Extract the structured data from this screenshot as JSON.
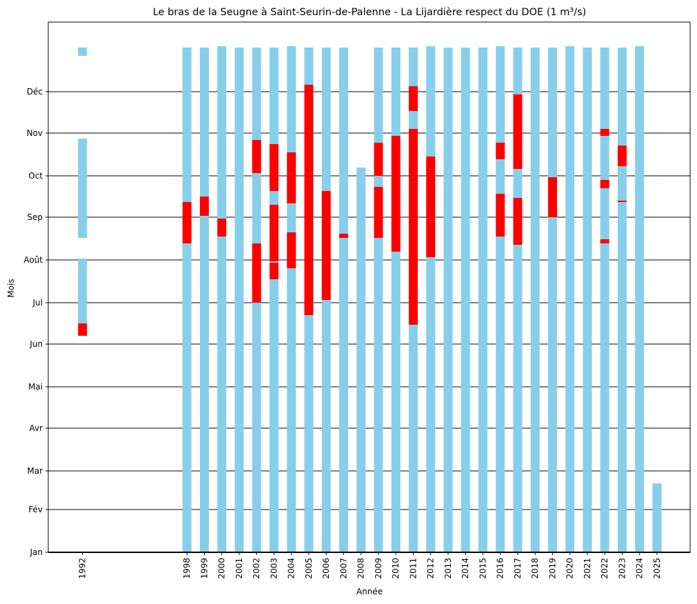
{
  "chart_data": {
    "type": "bar",
    "title": "Le bras de la Seugne à Saint-Seurin-de-Palenne - La Lijardière respect du DOE (1 m³/s)",
    "xlabel": "Année",
    "ylabel": "Mois",
    "ylim": [
      0,
      366
    ],
    "y_tick_labels": [
      {
        "label": "Jan",
        "day": 0
      },
      {
        "label": "Fév",
        "day": 31
      },
      {
        "label": "Mar",
        "day": 59
      },
      {
        "label": "Avr",
        "day": 90
      },
      {
        "label": "Mai",
        "day": 120
      },
      {
        "label": "Jun",
        "day": 151
      },
      {
        "label": "Jul",
        "day": 181
      },
      {
        "label": "Août",
        "day": 212
      },
      {
        "label": "Sep",
        "day": 243
      },
      {
        "label": "Oct",
        "day": 273
      },
      {
        "label": "Nov",
        "day": 304
      },
      {
        "label": "Déc",
        "day": 334
      }
    ],
    "grid": "horizontal lines at month starts",
    "legend": "none",
    "colors": {
      "respect": "#87CEEB",
      "non_respect": "#FF0000"
    },
    "series_semantics": "Each bar spans day-of-year ranges; blue = DOE respected, red = DOE not respected",
    "years": [
      {
        "year": "1992",
        "segments": [
          {
            "start": 157,
            "end": 166,
            "status": "non_respect"
          },
          {
            "start": 166,
            "end": 213,
            "status": "respect"
          },
          {
            "start": 228,
            "end": 300,
            "status": "respect"
          },
          {
            "start": 360,
            "end": 366,
            "status": "respect"
          }
        ]
      },
      {
        "year": "1998",
        "segments": [
          {
            "start": 0,
            "end": 224,
            "status": "respect"
          },
          {
            "start": 224,
            "end": 254,
            "status": "non_respect"
          },
          {
            "start": 254,
            "end": 366,
            "status": "respect"
          }
        ]
      },
      {
        "year": "1999",
        "segments": [
          {
            "start": 0,
            "end": 244,
            "status": "respect"
          },
          {
            "start": 244,
            "end": 258,
            "status": "non_respect"
          },
          {
            "start": 258,
            "end": 366,
            "status": "respect"
          }
        ]
      },
      {
        "year": "2000",
        "segments": [
          {
            "start": 0,
            "end": 229,
            "status": "respect"
          },
          {
            "start": 229,
            "end": 242,
            "status": "non_respect"
          },
          {
            "start": 242,
            "end": 367,
            "status": "respect"
          }
        ]
      },
      {
        "year": "2001",
        "segments": [
          {
            "start": 0,
            "end": 366,
            "status": "respect"
          }
        ]
      },
      {
        "year": "2002",
        "segments": [
          {
            "start": 0,
            "end": 181,
            "status": "respect"
          },
          {
            "start": 181,
            "end": 224,
            "status": "non_respect"
          },
          {
            "start": 224,
            "end": 275,
            "status": "respect"
          },
          {
            "start": 275,
            "end": 277,
            "status": "non_respect"
          },
          {
            "start": 277,
            "end": 299,
            "status": "non_respect"
          },
          {
            "start": 299,
            "end": 366,
            "status": "respect"
          }
        ]
      },
      {
        "year": "2003",
        "segments": [
          {
            "start": 0,
            "end": 198,
            "status": "respect"
          },
          {
            "start": 198,
            "end": 210,
            "status": "non_respect"
          },
          {
            "start": 210,
            "end": 211,
            "status": "respect"
          },
          {
            "start": 211,
            "end": 252,
            "status": "non_respect"
          },
          {
            "start": 252,
            "end": 262,
            "status": "respect"
          },
          {
            "start": 262,
            "end": 296,
            "status": "non_respect"
          },
          {
            "start": 296,
            "end": 366,
            "status": "respect"
          }
        ]
      },
      {
        "year": "2004",
        "segments": [
          {
            "start": 0,
            "end": 206,
            "status": "respect"
          },
          {
            "start": 206,
            "end": 232,
            "status": "non_respect"
          },
          {
            "start": 232,
            "end": 253,
            "status": "respect"
          },
          {
            "start": 253,
            "end": 290,
            "status": "non_respect"
          },
          {
            "start": 290,
            "end": 367,
            "status": "respect"
          }
        ]
      },
      {
        "year": "2005",
        "segments": [
          {
            "start": 0,
            "end": 172,
            "status": "respect"
          },
          {
            "start": 172,
            "end": 339,
            "status": "non_respect"
          },
          {
            "start": 339,
            "end": 366,
            "status": "respect"
          }
        ]
      },
      {
        "year": "2006",
        "segments": [
          {
            "start": 0,
            "end": 183,
            "status": "respect"
          },
          {
            "start": 183,
            "end": 262,
            "status": "non_respect"
          },
          {
            "start": 262,
            "end": 366,
            "status": "respect"
          }
        ]
      },
      {
        "year": "2007",
        "segments": [
          {
            "start": 0,
            "end": 228,
            "status": "respect"
          },
          {
            "start": 228,
            "end": 231,
            "status": "non_respect"
          },
          {
            "start": 231,
            "end": 366,
            "status": "respect"
          }
        ]
      },
      {
        "year": "2008",
        "segments": [
          {
            "start": 0,
            "end": 279,
            "status": "respect"
          }
        ]
      },
      {
        "year": "2009",
        "segments": [
          {
            "start": 0,
            "end": 228,
            "status": "respect"
          },
          {
            "start": 228,
            "end": 265,
            "status": "non_respect"
          },
          {
            "start": 265,
            "end": 273,
            "status": "respect"
          },
          {
            "start": 273,
            "end": 297,
            "status": "non_respect"
          },
          {
            "start": 297,
            "end": 366,
            "status": "respect"
          }
        ]
      },
      {
        "year": "2010",
        "segments": [
          {
            "start": 0,
            "end": 218,
            "status": "respect"
          },
          {
            "start": 218,
            "end": 302,
            "status": "non_respect"
          },
          {
            "start": 302,
            "end": 366,
            "status": "respect"
          }
        ]
      },
      {
        "year": "2011",
        "segments": [
          {
            "start": 0,
            "end": 165,
            "status": "respect"
          },
          {
            "start": 165,
            "end": 307,
            "status": "non_respect"
          },
          {
            "start": 307,
            "end": 320,
            "status": "respect"
          },
          {
            "start": 320,
            "end": 338,
            "status": "non_respect"
          },
          {
            "start": 338,
            "end": 366,
            "status": "respect"
          }
        ]
      },
      {
        "year": "2012",
        "segments": [
          {
            "start": 0,
            "end": 214,
            "status": "respect"
          },
          {
            "start": 214,
            "end": 287,
            "status": "non_respect"
          },
          {
            "start": 287,
            "end": 367,
            "status": "respect"
          }
        ]
      },
      {
        "year": "2013",
        "segments": [
          {
            "start": 0,
            "end": 366,
            "status": "respect"
          }
        ]
      },
      {
        "year": "2014",
        "segments": [
          {
            "start": 0,
            "end": 366,
            "status": "respect"
          }
        ]
      },
      {
        "year": "2015",
        "segments": [
          {
            "start": 0,
            "end": 366,
            "status": "respect"
          }
        ]
      },
      {
        "year": "2016",
        "segments": [
          {
            "start": 0,
            "end": 229,
            "status": "respect"
          },
          {
            "start": 229,
            "end": 260,
            "status": "non_respect"
          },
          {
            "start": 260,
            "end": 285,
            "status": "respect"
          },
          {
            "start": 285,
            "end": 297,
            "status": "non_respect"
          },
          {
            "start": 297,
            "end": 367,
            "status": "respect"
          }
        ]
      },
      {
        "year": "2017",
        "segments": [
          {
            "start": 0,
            "end": 223,
            "status": "respect"
          },
          {
            "start": 223,
            "end": 257,
            "status": "non_respect"
          },
          {
            "start": 257,
            "end": 278,
            "status": "respect"
          },
          {
            "start": 278,
            "end": 332,
            "status": "non_respect"
          },
          {
            "start": 332,
            "end": 366,
            "status": "respect"
          }
        ]
      },
      {
        "year": "2018",
        "segments": [
          {
            "start": 0,
            "end": 366,
            "status": "respect"
          }
        ]
      },
      {
        "year": "2019",
        "segments": [
          {
            "start": 0,
            "end": 243,
            "status": "respect"
          },
          {
            "start": 243,
            "end": 272,
            "status": "non_respect"
          },
          {
            "start": 272,
            "end": 366,
            "status": "respect"
          }
        ]
      },
      {
        "year": "2020",
        "segments": [
          {
            "start": 0,
            "end": 367,
            "status": "respect"
          }
        ]
      },
      {
        "year": "2021",
        "segments": [
          {
            "start": 0,
            "end": 366,
            "status": "respect"
          }
        ]
      },
      {
        "year": "2022",
        "segments": [
          {
            "start": 0,
            "end": 224,
            "status": "respect"
          },
          {
            "start": 224,
            "end": 227,
            "status": "non_respect"
          },
          {
            "start": 227,
            "end": 264,
            "status": "respect"
          },
          {
            "start": 264,
            "end": 270,
            "status": "non_respect"
          },
          {
            "start": 270,
            "end": 302,
            "status": "respect"
          },
          {
            "start": 302,
            "end": 307,
            "status": "non_respect"
          },
          {
            "start": 307,
            "end": 366,
            "status": "respect"
          }
        ]
      },
      {
        "year": "2023",
        "segments": [
          {
            "start": 0,
            "end": 254,
            "status": "respect"
          },
          {
            "start": 254,
            "end": 255,
            "status": "non_respect"
          },
          {
            "start": 255,
            "end": 280,
            "status": "respect"
          },
          {
            "start": 280,
            "end": 295,
            "status": "non_respect"
          },
          {
            "start": 295,
            "end": 366,
            "status": "respect"
          }
        ]
      },
      {
        "year": "2024",
        "segments": [
          {
            "start": 0,
            "end": 367,
            "status": "respect"
          }
        ]
      },
      {
        "year": "2025",
        "segments": [
          {
            "start": 0,
            "end": 50,
            "status": "respect"
          }
        ]
      }
    ]
  }
}
